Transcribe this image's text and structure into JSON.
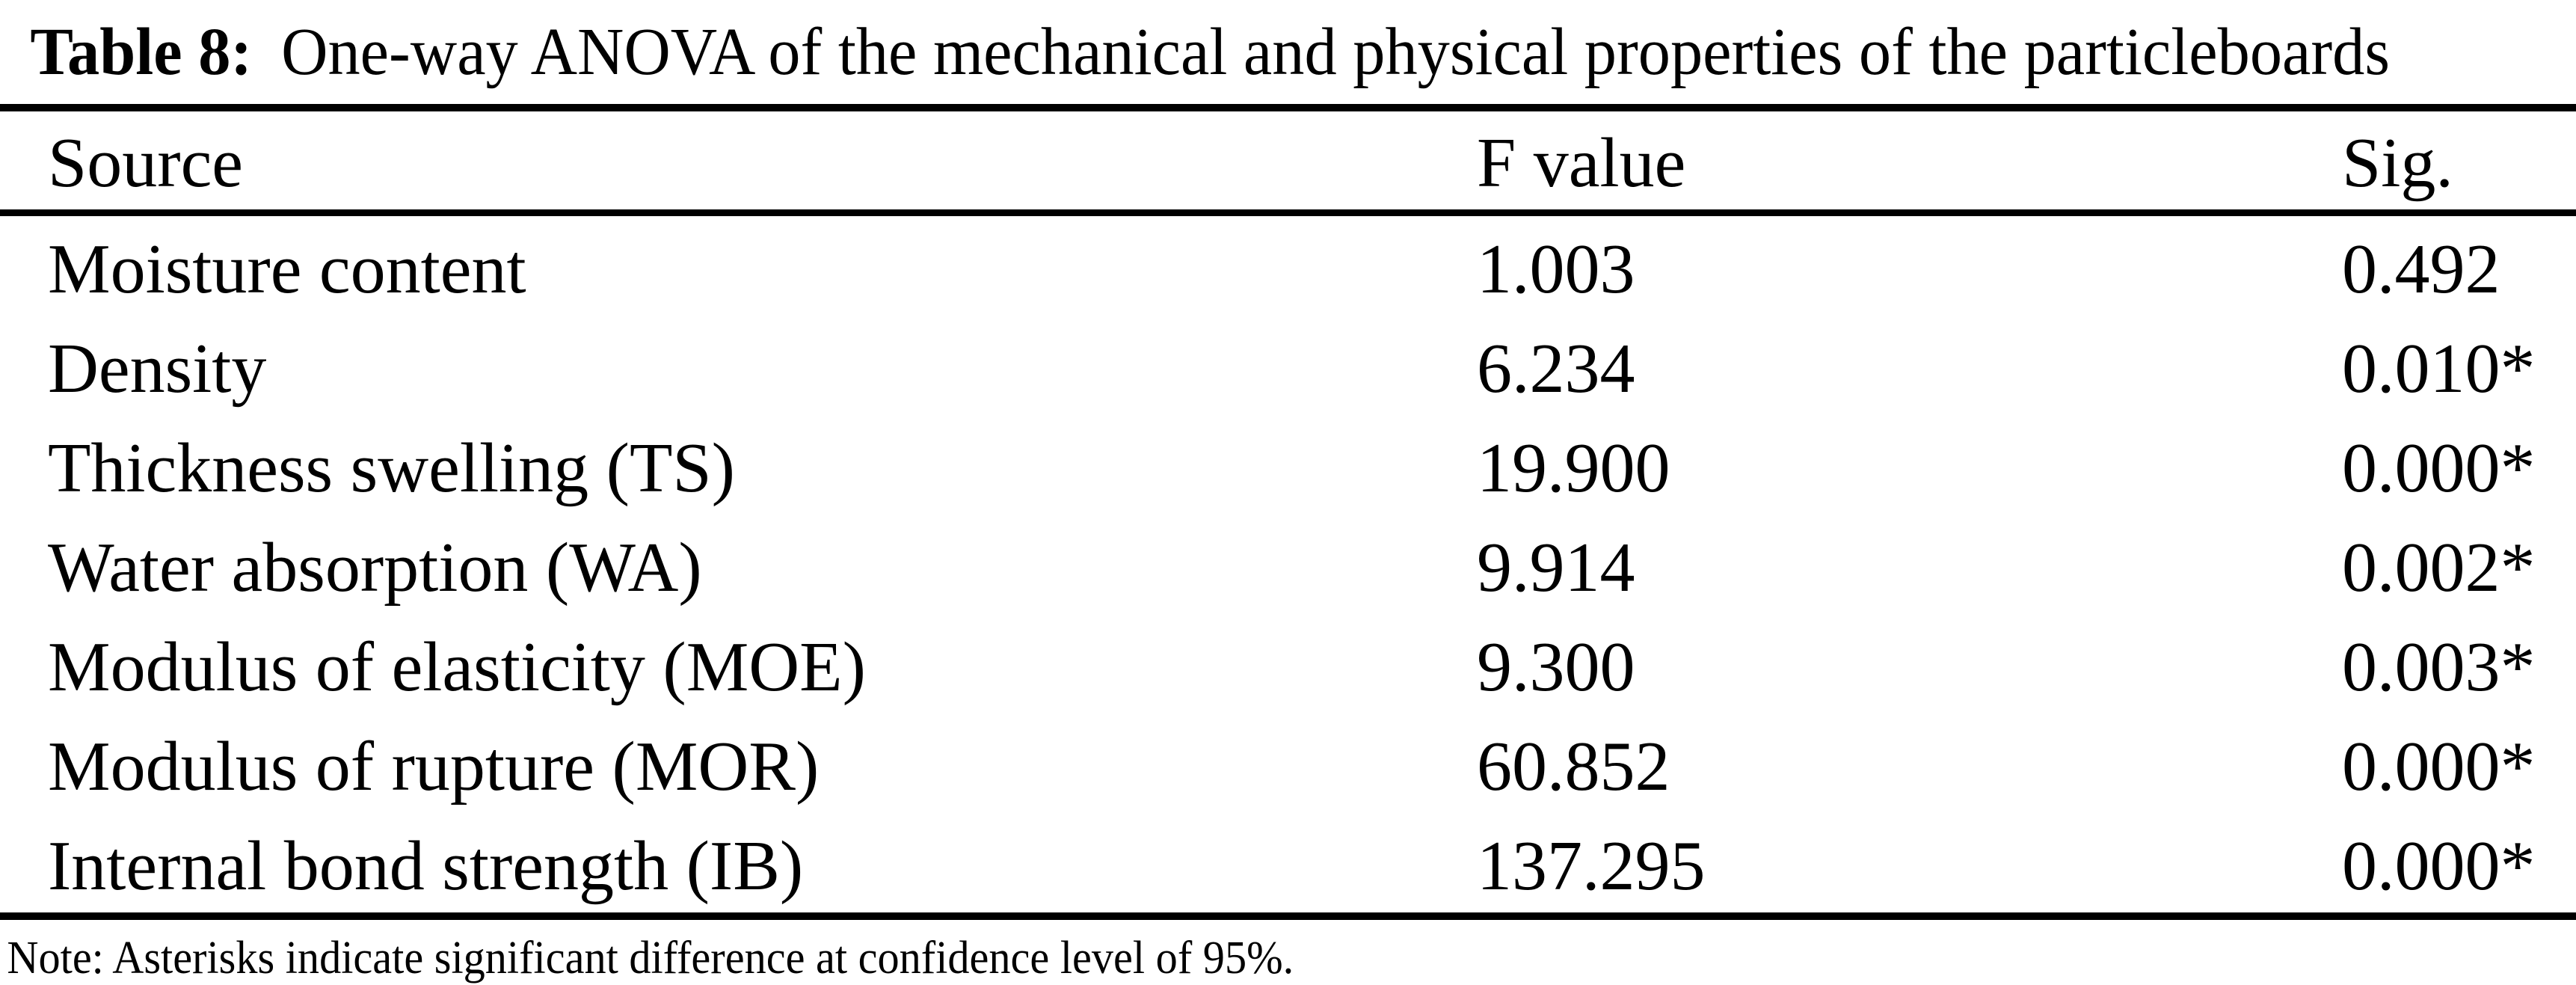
{
  "page": {
    "background_color": "#ffffff",
    "text_color": "#000000",
    "rule_color": "#000000"
  },
  "caption": {
    "label": "Table 8:",
    "text": "One-way ANOVA of the mechanical and physical properties of the particleboards"
  },
  "table": {
    "headers": [
      "Source",
      "F value",
      "Sig."
    ],
    "rows": [
      {
        "source": "Moisture content",
        "f_value": "1.003",
        "sig": "0.492"
      },
      {
        "source": "Density",
        "f_value": "6.234",
        "sig": "0.010*"
      },
      {
        "source": "Thickness swelling (TS)",
        "f_value": "19.900",
        "sig": "0.000*"
      },
      {
        "source": "Water absorption (WA)",
        "f_value": "9.914",
        "sig": "0.002*"
      },
      {
        "source": "Modulus of elasticity (MOE)",
        "f_value": "9.300",
        "sig": "0.003*"
      },
      {
        "source": "Modulus of rupture (MOR)",
        "f_value": "60.852",
        "sig": "0.000*"
      },
      {
        "source": "Internal bond strength (IB)",
        "f_value": "137.295",
        "sig": "0.000*"
      }
    ]
  },
  "note": "Note: Asterisks indicate significant difference at confidence level of 95%."
}
